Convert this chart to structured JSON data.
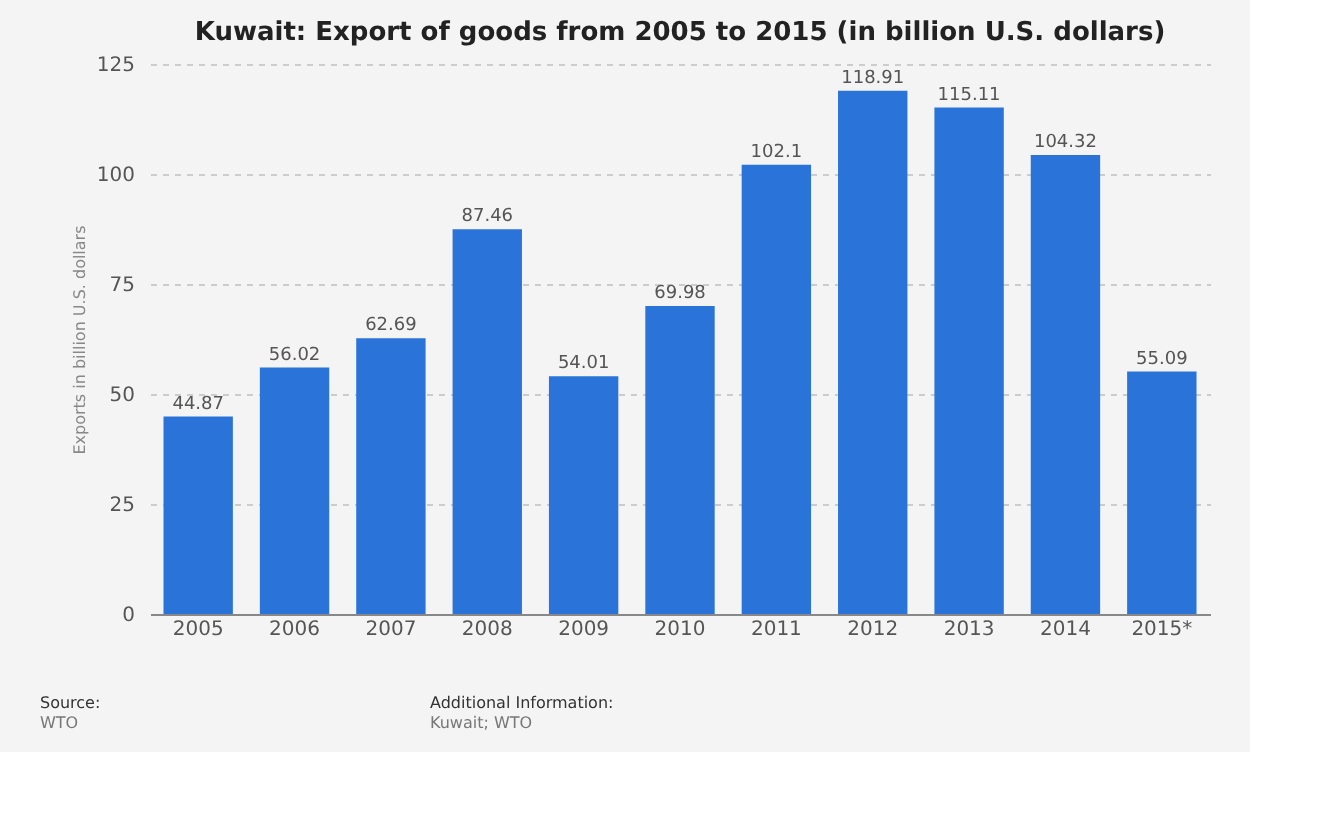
{
  "chart_data": {
    "type": "bar",
    "title": "Kuwait: Export of goods from 2005 to 2015 (in billion U.S. dollars)",
    "ylabel": "Exports in billion U.S. dollars",
    "categories": [
      "2005",
      "2006",
      "2007",
      "2008",
      "2009",
      "2010",
      "2011",
      "2012",
      "2013",
      "2014",
      "2015*"
    ],
    "values": [
      44.87,
      56.02,
      62.69,
      87.46,
      54.01,
      69.98,
      102.1,
      118.91,
      115.11,
      104.32,
      55.09
    ],
    "color": "#2a73d9",
    "ylim": [
      0,
      125
    ],
    "yticks": [
      0,
      25,
      50,
      75,
      100,
      125
    ],
    "grid": "y",
    "data_labels": true,
    "annotations": [
      "Source:",
      "WTO",
      "Additional Information:",
      "Kuwait; WTO"
    ]
  }
}
